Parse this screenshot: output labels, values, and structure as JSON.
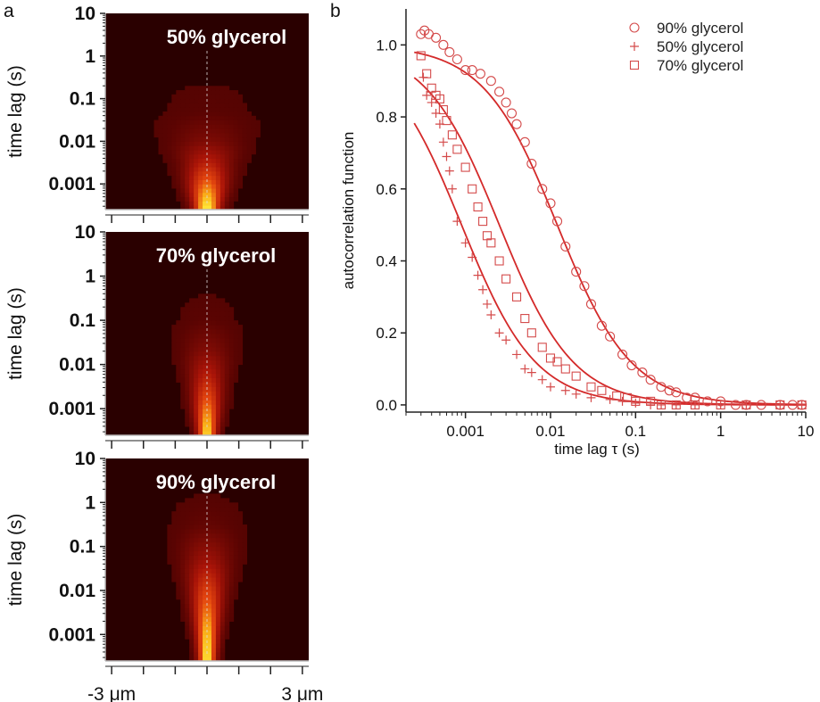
{
  "panel_labels": {
    "a": "a",
    "b": "b"
  },
  "colors": {
    "heatmap_background": "#2a0000",
    "heatmap_mid": "#c41a10",
    "heatmap_peak": "#ffe830",
    "fit_line": "#d42a2a",
    "marker": "#d44a4a",
    "axis": "#222222"
  },
  "chart_data": [
    {
      "type": "heatmap",
      "panel": "a",
      "title": "50% glycerol",
      "ylabel": "time lag (s)",
      "yscale": "log",
      "yticks": [
        {
          "value": 0.001,
          "label": "0.001"
        },
        {
          "value": 0.01,
          "label": "0.01"
        },
        {
          "value": 0.1,
          "label": "0.1"
        },
        {
          "value": 1,
          "label": "1"
        },
        {
          "value": 10,
          "label": "10"
        }
      ],
      "ylim": [
        0.00025,
        10
      ],
      "xlim_um": [
        -3.2,
        3.2
      ],
      "xticks": [],
      "center_um": 0,
      "profile": [
        {
          "lag": 0.0003,
          "intensity": 1.0,
          "width_um": 0.3
        },
        {
          "lag": 0.0008,
          "intensity": 0.78,
          "width_um": 0.42
        },
        {
          "lag": 0.003,
          "intensity": 0.45,
          "width_um": 0.55
        },
        {
          "lag": 0.01,
          "intensity": 0.2,
          "width_um": 0.8
        },
        {
          "lag": 0.05,
          "intensity": 0.06,
          "width_um": 1.1
        },
        {
          "lag": 1,
          "intensity": 0.0,
          "width_um": 1.5
        }
      ]
    },
    {
      "type": "heatmap",
      "panel": "a",
      "title": "70% glycerol",
      "ylabel": "time lag (s)",
      "yscale": "log",
      "yticks": [
        {
          "value": 0.001,
          "label": "0.001"
        },
        {
          "value": 0.01,
          "label": "0.01"
        },
        {
          "value": 0.1,
          "label": "0.1"
        },
        {
          "value": 1,
          "label": "1"
        },
        {
          "value": 10,
          "label": "10"
        }
      ],
      "ylim": [
        0.00025,
        10
      ],
      "xlim_um": [
        -3.2,
        3.2
      ],
      "xticks": [],
      "center_um": 0,
      "profile": [
        {
          "lag": 0.0003,
          "intensity": 0.95,
          "width_um": 0.22
        },
        {
          "lag": 0.001,
          "intensity": 0.75,
          "width_um": 0.3
        },
        {
          "lag": 0.005,
          "intensity": 0.45,
          "width_um": 0.4
        },
        {
          "lag": 0.02,
          "intensity": 0.22,
          "width_um": 0.55
        },
        {
          "lag": 0.1,
          "intensity": 0.07,
          "width_um": 0.7
        },
        {
          "lag": 1,
          "intensity": 0.0,
          "width_um": 1.0
        }
      ]
    },
    {
      "type": "heatmap",
      "panel": "a",
      "title": "90% glycerol",
      "ylabel": "time lag (s)",
      "yscale": "log",
      "yticks": [
        {
          "value": 0.001,
          "label": "0.001"
        },
        {
          "value": 0.01,
          "label": "0.01"
        },
        {
          "value": 0.1,
          "label": "0.1"
        },
        {
          "value": 1,
          "label": "1"
        },
        {
          "value": 10,
          "label": "10"
        }
      ],
      "ylim": [
        0.00025,
        10
      ],
      "xlim_um": [
        -3.2,
        3.2
      ],
      "xticks": [
        {
          "value": -3,
          "label": "-3 μm"
        },
        {
          "value": 3,
          "label": "3 μm"
        }
      ],
      "center_um": 0,
      "profile": [
        {
          "lag": 0.0003,
          "intensity": 1.0,
          "width_um": 0.2
        },
        {
          "lag": 0.001,
          "intensity": 0.9,
          "width_um": 0.25
        },
        {
          "lag": 0.01,
          "intensity": 0.6,
          "width_um": 0.4
        },
        {
          "lag": 0.05,
          "intensity": 0.32,
          "width_um": 0.55
        },
        {
          "lag": 0.3,
          "intensity": 0.1,
          "width_um": 0.75
        },
        {
          "lag": 3,
          "intensity": 0.0,
          "width_um": 1.0
        }
      ]
    },
    {
      "type": "scatter",
      "panel": "b",
      "xlabel": "time lag τ (s)",
      "ylabel": "autocorrelation function",
      "xscale": "log",
      "xlim": [
        0.0002,
        10
      ],
      "ylim": [
        -0.02,
        1.1
      ],
      "xticks": [
        {
          "value": 0.001,
          "label": "0.001"
        },
        {
          "value": 0.01,
          "label": "0.01"
        },
        {
          "value": 0.1,
          "label": "0.1"
        },
        {
          "value": 1,
          "label": "1"
        },
        {
          "value": 10,
          "label": "10"
        }
      ],
      "yticks": [
        {
          "value": 0,
          "label": "0.0"
        },
        {
          "value": 0.2,
          "label": "0.2"
        },
        {
          "value": 0.4,
          "label": "0.4"
        },
        {
          "value": 0.6,
          "label": "0.6"
        },
        {
          "value": 0.8,
          "label": "0.8"
        },
        {
          "value": 1.0,
          "label": "1.0"
        }
      ],
      "legend_position": "top-right",
      "series": [
        {
          "name": "90% glycerol",
          "marker": "circle",
          "points": [
            [
              0.0003,
              1.03
            ],
            [
              0.00033,
              1.04
            ],
            [
              0.00037,
              1.03
            ],
            [
              0.00045,
              1.02
            ],
            [
              0.00055,
              1.0
            ],
            [
              0.00065,
              0.98
            ],
            [
              0.0008,
              0.96
            ],
            [
              0.001,
              0.93
            ],
            [
              0.0012,
              0.93
            ],
            [
              0.0015,
              0.92
            ],
            [
              0.002,
              0.9
            ],
            [
              0.0025,
              0.87
            ],
            [
              0.003,
              0.84
            ],
            [
              0.0035,
              0.81
            ],
            [
              0.004,
              0.78
            ],
            [
              0.005,
              0.73
            ],
            [
              0.006,
              0.67
            ],
            [
              0.008,
              0.6
            ],
            [
              0.01,
              0.56
            ],
            [
              0.012,
              0.51
            ],
            [
              0.015,
              0.44
            ],
            [
              0.02,
              0.37
            ],
            [
              0.025,
              0.33
            ],
            [
              0.03,
              0.28
            ],
            [
              0.04,
              0.22
            ],
            [
              0.05,
              0.19
            ],
            [
              0.07,
              0.14
            ],
            [
              0.09,
              0.11
            ],
            [
              0.12,
              0.09
            ],
            [
              0.15,
              0.07
            ],
            [
              0.2,
              0.05
            ],
            [
              0.25,
              0.04
            ],
            [
              0.3,
              0.035
            ],
            [
              0.4,
              0.02
            ],
            [
              0.5,
              0.02
            ],
            [
              0.7,
              0.01
            ],
            [
              1,
              0.01
            ],
            [
              1.5,
              0.0
            ],
            [
              2,
              0.0
            ],
            [
              3,
              0.0
            ],
            [
              5,
              0.0
            ],
            [
              7,
              0.0
            ],
            [
              9,
              0.0
            ]
          ],
          "fit": {
            "tau": 0.012
          }
        },
        {
          "name": "50% glycerol",
          "marker": "plus",
          "points": [
            [
              0.00032,
              0.91
            ],
            [
              0.00035,
              0.86
            ],
            [
              0.0004,
              0.84
            ],
            [
              0.00045,
              0.81
            ],
            [
              0.0005,
              0.78
            ],
            [
              0.00055,
              0.73
            ],
            [
              0.0006,
              0.69
            ],
            [
              0.00065,
              0.65
            ],
            [
              0.0007,
              0.6
            ],
            [
              0.0008,
              0.51
            ],
            [
              0.001,
              0.45
            ],
            [
              0.0012,
              0.41
            ],
            [
              0.0014,
              0.36
            ],
            [
              0.0016,
              0.32
            ],
            [
              0.0018,
              0.28
            ],
            [
              0.002,
              0.25
            ],
            [
              0.0025,
              0.2
            ],
            [
              0.003,
              0.18
            ],
            [
              0.004,
              0.14
            ],
            [
              0.005,
              0.1
            ],
            [
              0.006,
              0.09
            ],
            [
              0.008,
              0.07
            ],
            [
              0.01,
              0.05
            ],
            [
              0.015,
              0.04
            ],
            [
              0.02,
              0.03
            ],
            [
              0.03,
              0.02
            ],
            [
              0.05,
              0.015
            ],
            [
              0.07,
              0.01
            ],
            [
              0.1,
              0.005
            ],
            [
              0.15,
              0.0
            ],
            [
              0.2,
              0.0
            ],
            [
              0.3,
              0.0
            ],
            [
              0.5,
              0.0
            ],
            [
              1,
              0.0
            ],
            [
              2,
              0.0
            ],
            [
              5,
              0.0
            ],
            [
              9,
              0.0
            ]
          ],
          "fit": {
            "tau": 0.0009
          }
        },
        {
          "name": "70% glycerol",
          "marker": "square",
          "points": [
            [
              0.0003,
              0.97
            ],
            [
              0.00035,
              0.92
            ],
            [
              0.0004,
              0.88
            ],
            [
              0.00045,
              0.86
            ],
            [
              0.0005,
              0.85
            ],
            [
              0.00055,
              0.82
            ],
            [
              0.0006,
              0.79
            ],
            [
              0.0007,
              0.75
            ],
            [
              0.0008,
              0.71
            ],
            [
              0.001,
              0.66
            ],
            [
              0.0012,
              0.6
            ],
            [
              0.0014,
              0.55
            ],
            [
              0.0016,
              0.51
            ],
            [
              0.0018,
              0.47
            ],
            [
              0.002,
              0.45
            ],
            [
              0.0025,
              0.4
            ],
            [
              0.003,
              0.35
            ],
            [
              0.004,
              0.3
            ],
            [
              0.005,
              0.24
            ],
            [
              0.006,
              0.2
            ],
            [
              0.008,
              0.16
            ],
            [
              0.01,
              0.13
            ],
            [
              0.012,
              0.12
            ],
            [
              0.015,
              0.1
            ],
            [
              0.02,
              0.08
            ],
            [
              0.03,
              0.05
            ],
            [
              0.04,
              0.04
            ],
            [
              0.06,
              0.025
            ],
            [
              0.08,
              0.02
            ],
            [
              0.1,
              0.01
            ],
            [
              0.15,
              0.01
            ],
            [
              0.2,
              0.0
            ],
            [
              0.3,
              0.0
            ],
            [
              0.5,
              0.0
            ],
            [
              1,
              0.0
            ],
            [
              2,
              0.0
            ],
            [
              5,
              0.0
            ],
            [
              9,
              0.0
            ]
          ],
          "fit": {
            "tau": 0.0025
          }
        }
      ]
    }
  ]
}
